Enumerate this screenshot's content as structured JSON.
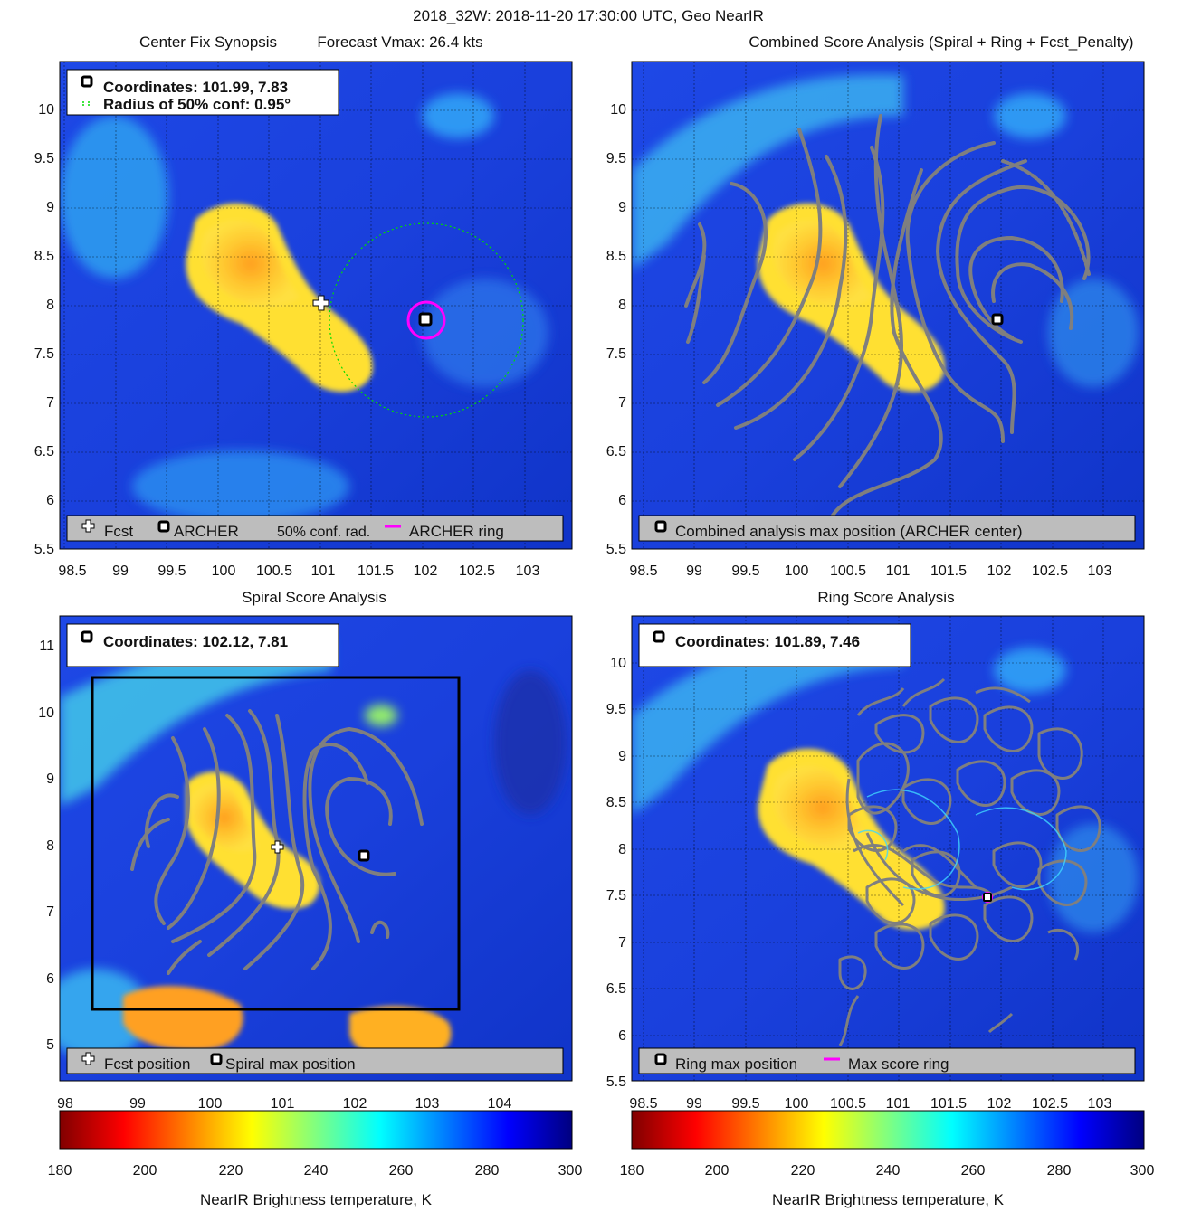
{
  "figure_title": "2018_32W: 2018-11-20 17:30:00 UTC, Geo NearIR",
  "panels": [
    {
      "id": "synopsis",
      "title_left": "Center Fix Synopsis",
      "title_right": "Forecast Vmax: 26.4 kts",
      "info_lines": [
        "Coordinates: 101.99, 7.83",
        "Radius of 50% conf: 0.95°"
      ],
      "legend": [
        "Fcst",
        "ARCHER",
        "50% conf. rad.",
        "ARCHER ring"
      ],
      "colors": {
        "ring": "#ff00ff",
        "conf_circle": "#00dd00",
        "fcst": "#ffffff"
      }
    },
    {
      "id": "combined",
      "title": "Combined Score Analysis (Spiral + Ring + Fcst_Penalty)",
      "legend": [
        "Combined analysis max position (ARCHER center)"
      ]
    },
    {
      "id": "spiral",
      "title": "Spiral Score Analysis",
      "info_lines": [
        "Coordinates: 102.12, 7.81"
      ],
      "legend": [
        "Fcst position",
        "Spiral max position"
      ]
    },
    {
      "id": "ring",
      "title": "Ring Score Analysis",
      "info_lines": [
        "Coordinates: 101.89, 7.46"
      ],
      "legend": [
        "Ring max position",
        "Max score ring"
      ]
    }
  ],
  "chart_data": [
    {
      "type": "heatmap",
      "panel": "synopsis",
      "xlim": [
        98.4,
        103.4
      ],
      "ylim": [
        5.5,
        10.5
      ],
      "xticks": [
        "98.5",
        "99",
        "99.5",
        "100",
        "100.5",
        "101",
        "101.5",
        "102",
        "102.5",
        "103"
      ],
      "yticks": [
        "5.5",
        "6",
        "6.5",
        "7",
        "7.5",
        "8",
        "8.5",
        "9",
        "9.5",
        "10"
      ],
      "grid": true,
      "archer_center": [
        101.99,
        7.83
      ],
      "fcst_position": [
        100.9,
        7.98
      ],
      "conf_radius_deg": 0.95,
      "ring_radius_deg": 0.17
    },
    {
      "type": "heatmap",
      "panel": "combined",
      "xlim": [
        98.4,
        103.4
      ],
      "ylim": [
        5.5,
        10.5
      ],
      "xticks": [
        "98.5",
        "99",
        "99.5",
        "100",
        "100.5",
        "101",
        "101.5",
        "102",
        "102.5",
        "103"
      ],
      "yticks": [
        "5.5",
        "6",
        "6.5",
        "7",
        "7.5",
        "8",
        "8.5",
        "9",
        "9.5",
        "10"
      ],
      "grid": true,
      "max_position": [
        101.99,
        7.83
      ]
    },
    {
      "type": "heatmap",
      "panel": "spiral",
      "xlim": [
        98,
        105
      ],
      "ylim": [
        4.5,
        11.5
      ],
      "xticks": [
        "98",
        "99",
        "100",
        "101",
        "102",
        "103",
        "104"
      ],
      "yticks": [
        "5",
        "6",
        "7",
        "8",
        "9",
        "10",
        "11"
      ],
      "grid": false,
      "fcst_position": [
        100.9,
        7.98
      ],
      "max_position": [
        102.12,
        7.81
      ],
      "search_box": {
        "lon": [
          98.45,
          103.45
        ],
        "lat": [
          5.5,
          10.5
        ]
      }
    },
    {
      "type": "heatmap",
      "panel": "ring",
      "xlim": [
        98.4,
        103.4
      ],
      "ylim": [
        5.5,
        10.5
      ],
      "xticks": [
        "98.5",
        "99",
        "99.5",
        "100",
        "100.5",
        "101",
        "101.5",
        "102",
        "102.5",
        "103"
      ],
      "yticks": [
        "5.5",
        "6",
        "6.5",
        "7",
        "7.5",
        "8",
        "8.5",
        "9",
        "9.5",
        "10"
      ],
      "grid": true,
      "max_position": [
        101.89,
        7.46
      ]
    }
  ],
  "colorbars": [
    {
      "label": "NearIR Brightness temperature, K",
      "range": [
        180,
        300
      ],
      "ticks": [
        "180",
        "200",
        "220",
        "240",
        "260",
        "280",
        "300"
      ],
      "colormap": [
        "#800000",
        "#ff0000",
        "#ff8000",
        "#ffff00",
        "#80ff80",
        "#00ffff",
        "#0080ff",
        "#0000ff",
        "#000080"
      ]
    },
    {
      "label": "NearIR Brightness temperature, K",
      "range": [
        180,
        300
      ],
      "ticks": [
        "180",
        "200",
        "220",
        "240",
        "260",
        "280",
        "300"
      ],
      "colormap": [
        "#800000",
        "#ff0000",
        "#ff8000",
        "#ffff00",
        "#80ff80",
        "#00ffff",
        "#0080ff",
        "#0000ff",
        "#000080"
      ]
    }
  ]
}
